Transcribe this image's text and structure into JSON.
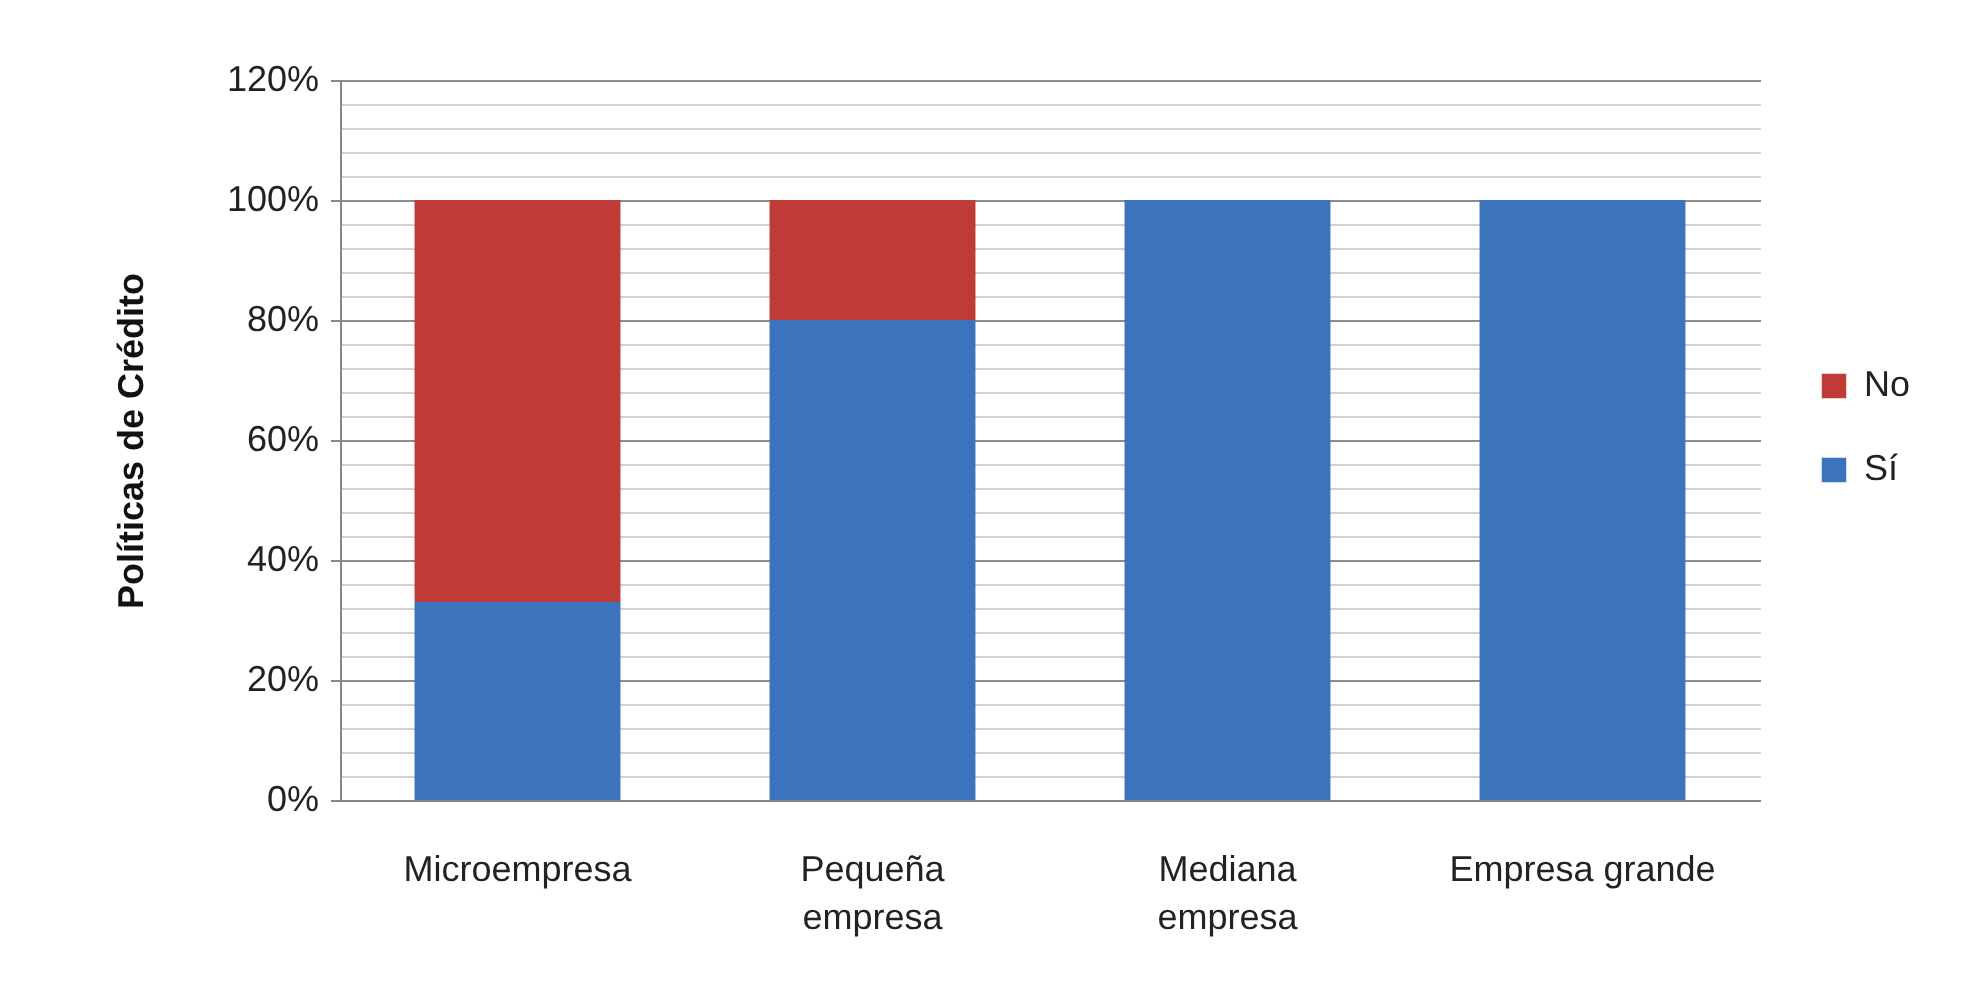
{
  "chart_data": {
    "type": "bar",
    "stacked": true,
    "ylabel": "Políticas de Crédito",
    "categories": [
      "Microempresa",
      "Pequeña empresa",
      "Mediana empresa",
      "Empresa grande"
    ],
    "series": [
      {
        "name": "Sí",
        "color": "#3b73bd",
        "values": [
          33,
          80,
          100,
          100
        ]
      },
      {
        "name": "No",
        "color": "#be3b38",
        "values": [
          67,
          20,
          0,
          0
        ]
      }
    ],
    "ylim": [
      0,
      120
    ],
    "yticks": [
      {
        "value": 0,
        "label": "0%"
      },
      {
        "value": 4,
        "label": null
      },
      {
        "value": 8,
        "label": null
      },
      {
        "value": 12,
        "label": null
      },
      {
        "value": 16,
        "label": null
      },
      {
        "value": 20,
        "label": "20%"
      },
      {
        "value": 24,
        "label": null
      },
      {
        "value": 28,
        "label": null
      },
      {
        "value": 32,
        "label": null
      },
      {
        "value": 36,
        "label": null
      },
      {
        "value": 40,
        "label": "40%"
      },
      {
        "value": 44,
        "label": null
      },
      {
        "value": 48,
        "label": null
      },
      {
        "value": 52,
        "label": null
      },
      {
        "value": 56,
        "label": null
      },
      {
        "value": 60,
        "label": "60%"
      },
      {
        "value": 64,
        "label": null
      },
      {
        "value": 68,
        "label": null
      },
      {
        "value": 72,
        "label": null
      },
      {
        "value": 76,
        "label": null
      },
      {
        "value": 80,
        "label": "80%"
      },
      {
        "value": 84,
        "label": null
      },
      {
        "value": 88,
        "label": null
      },
      {
        "value": 92,
        "label": null
      },
      {
        "value": 96,
        "label": null
      },
      {
        "value": 100,
        "label": "100%"
      },
      {
        "value": 104,
        "label": null
      },
      {
        "value": 108,
        "label": null
      },
      {
        "value": 112,
        "label": null
      },
      {
        "value": 116,
        "label": null
      },
      {
        "value": 120,
        "label": "120%"
      }
    ],
    "grid": "y",
    "legend": "right"
  }
}
